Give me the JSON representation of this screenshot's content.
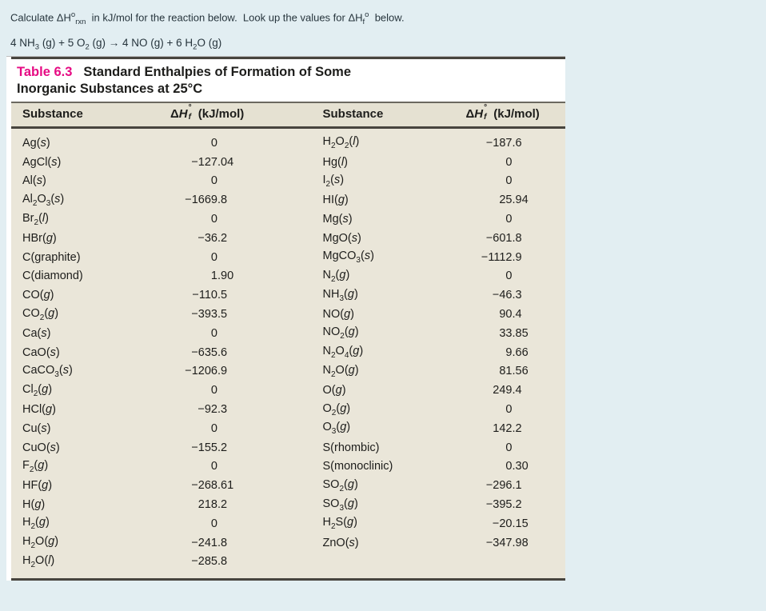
{
  "colors": {
    "page_bg": "#e2eef2",
    "card_bg": "#ffffff",
    "table_label_accent": "#e60b83",
    "header_band_bg": "#e5e1d2",
    "body_band_bg": "#eae6d9",
    "rule_dark": "#47443e",
    "text": "#1d1d1b"
  },
  "instruction": "Calculate ΔH^{o}_{rxn}  in kJ/mol for the reaction below.  Look up the values for ΔH_{f}^{o}  below.",
  "reaction": "4 NH_{3} (g) + 5 O_{2} (g) → 4 NO (g) + 6 H_{2}O (g)",
  "table": {
    "label": "Table 6.3",
    "title_line1": "Standard Enthalpies of Formation of Some",
    "title_line2": "Inorganic Substances at 25°C",
    "col_substance": "Substance",
    "col_dh": {
      "prefix": "Δ",
      "h": "H",
      "sup": "°",
      "sub": "f",
      "unit": " (kJ/mol)"
    },
    "left_rows": [
      {
        "substance": "Ag(*s*)",
        "dhf": "0"
      },
      {
        "substance": "AgCl(*s*)",
        "dhf": "−127.04"
      },
      {
        "substance": "Al(*s*)",
        "dhf": "0"
      },
      {
        "substance": "Al_{2}O_{3}(*s*)",
        "dhf": "−1669.8"
      },
      {
        "substance": "Br_{2}(*l*)",
        "dhf": "0"
      },
      {
        "substance": "HBr(*g*)",
        "dhf": "−36.2"
      },
      {
        "substance": "C(graphite)",
        "dhf": "0"
      },
      {
        "substance": "C(diamond)",
        "dhf": "1.90"
      },
      {
        "substance": "CO(*g*)",
        "dhf": "−110.5"
      },
      {
        "substance": "CO_{2}(*g*)",
        "dhf": "−393.5"
      },
      {
        "substance": "Ca(*s*)",
        "dhf": "0"
      },
      {
        "substance": "CaO(*s*)",
        "dhf": "−635.6"
      },
      {
        "substance": "CaCO_{3}(*s*)",
        "dhf": "−1206.9"
      },
      {
        "substance": "Cl_{2}(*g*)",
        "dhf": "0"
      },
      {
        "substance": "HCl(*g*)",
        "dhf": "−92.3"
      },
      {
        "substance": "Cu(*s*)",
        "dhf": "0"
      },
      {
        "substance": "CuO(*s*)",
        "dhf": "−155.2"
      },
      {
        "substance": "F_{2}(*g*)",
        "dhf": "0"
      },
      {
        "substance": "HF(*g*)",
        "dhf": "−268.61"
      },
      {
        "substance": "H(*g*)",
        "dhf": "218.2"
      },
      {
        "substance": "H_{2}(*g*)",
        "dhf": "0"
      },
      {
        "substance": "H_{2}O(*g*)",
        "dhf": "−241.8"
      },
      {
        "substance": "H_{2}O(*l*)",
        "dhf": "−285.8"
      }
    ],
    "right_rows": [
      {
        "substance": "H_{2}O_{2}(*l*)",
        "dhf": "−187.6"
      },
      {
        "substance": "Hg(*l*)",
        "dhf": "0"
      },
      {
        "substance": "I_{2}(*s*)",
        "dhf": "0"
      },
      {
        "substance": "HI(*g*)",
        "dhf": "25.94"
      },
      {
        "substance": "Mg(*s*)",
        "dhf": "0"
      },
      {
        "substance": "MgO(*s*)",
        "dhf": "−601.8"
      },
      {
        "substance": "MgCO_{3}(*s*)",
        "dhf": "−1112.9"
      },
      {
        "substance": "N_{2}(*g*)",
        "dhf": "0"
      },
      {
        "substance": "NH_{3}(*g*)",
        "dhf": "−46.3"
      },
      {
        "substance": "NO(*g*)",
        "dhf": "90.4"
      },
      {
        "substance": "NO_{2}(*g*)",
        "dhf": "33.85"
      },
      {
        "substance": "N_{2}O_{4}(*g*)",
        "dhf": "9.66"
      },
      {
        "substance": "N_{2}O(*g*)",
        "dhf": "81.56"
      },
      {
        "substance": "O(*g*)",
        "dhf": "249.4"
      },
      {
        "substance": "O_{2}(*g*)",
        "dhf": "0"
      },
      {
        "substance": "O_{3}(*g*)",
        "dhf": "142.2"
      },
      {
        "substance": "S(rhombic)",
        "dhf": "0"
      },
      {
        "substance": "S(monoclinic)",
        "dhf": "0.30"
      },
      {
        "substance": "SO_{2}(*g*)",
        "dhf": "−296.1"
      },
      {
        "substance": "SO_{3}(*g*)",
        "dhf": "−395.2"
      },
      {
        "substance": "H_{2}S(*g*)",
        "dhf": "−20.15"
      },
      {
        "substance": "ZnO(*s*)",
        "dhf": "−347.98"
      }
    ]
  }
}
